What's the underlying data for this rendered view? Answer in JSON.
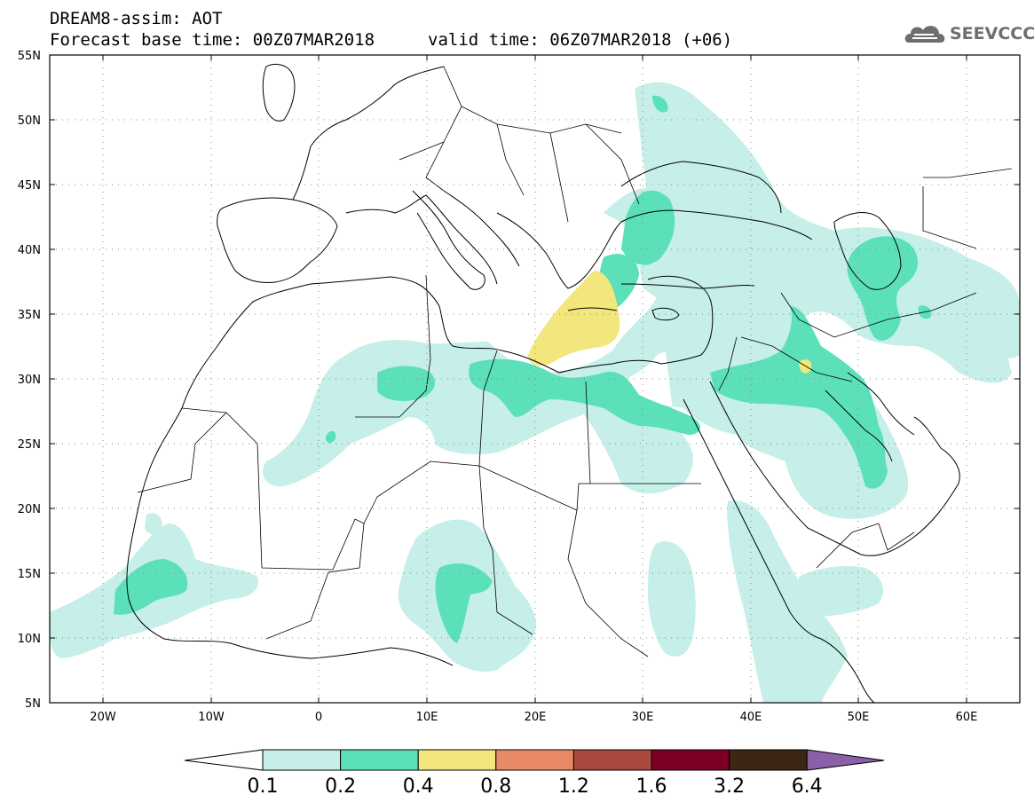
{
  "header": {
    "line1": "DREAM8-assim: AOT",
    "line2": "Forecast base time: 00Z07MAR2018",
    "valid": "valid time: 06Z07MAR2018 (+06)"
  },
  "logo": {
    "text": "SEEVCCC",
    "icon": "cloud-icon"
  },
  "map": {
    "lat_labels": [
      "55N",
      "50N",
      "45N",
      "40N",
      "35N",
      "30N",
      "25N",
      "20N",
      "15N",
      "10N",
      "5N"
    ],
    "lon_labels": [
      "20W",
      "10W",
      "0",
      "10E",
      "20E",
      "30E",
      "40E",
      "50E",
      "60E"
    ],
    "lon_range": [
      -25,
      65
    ],
    "lat_range": [
      5,
      55
    ],
    "grid": "dotted"
  },
  "colorbar": {
    "labels": [
      "0.1",
      "0.2",
      "0.4",
      "0.8",
      "1.2",
      "1.6",
      "3.2",
      "6.4"
    ],
    "colors": [
      "#ffffff",
      "#c5efe8",
      "#5be0ba",
      "#f3e67c",
      "#e88a66",
      "#a84b3e",
      "#7c0025",
      "#3d2714",
      "#8a60a8"
    ]
  }
}
